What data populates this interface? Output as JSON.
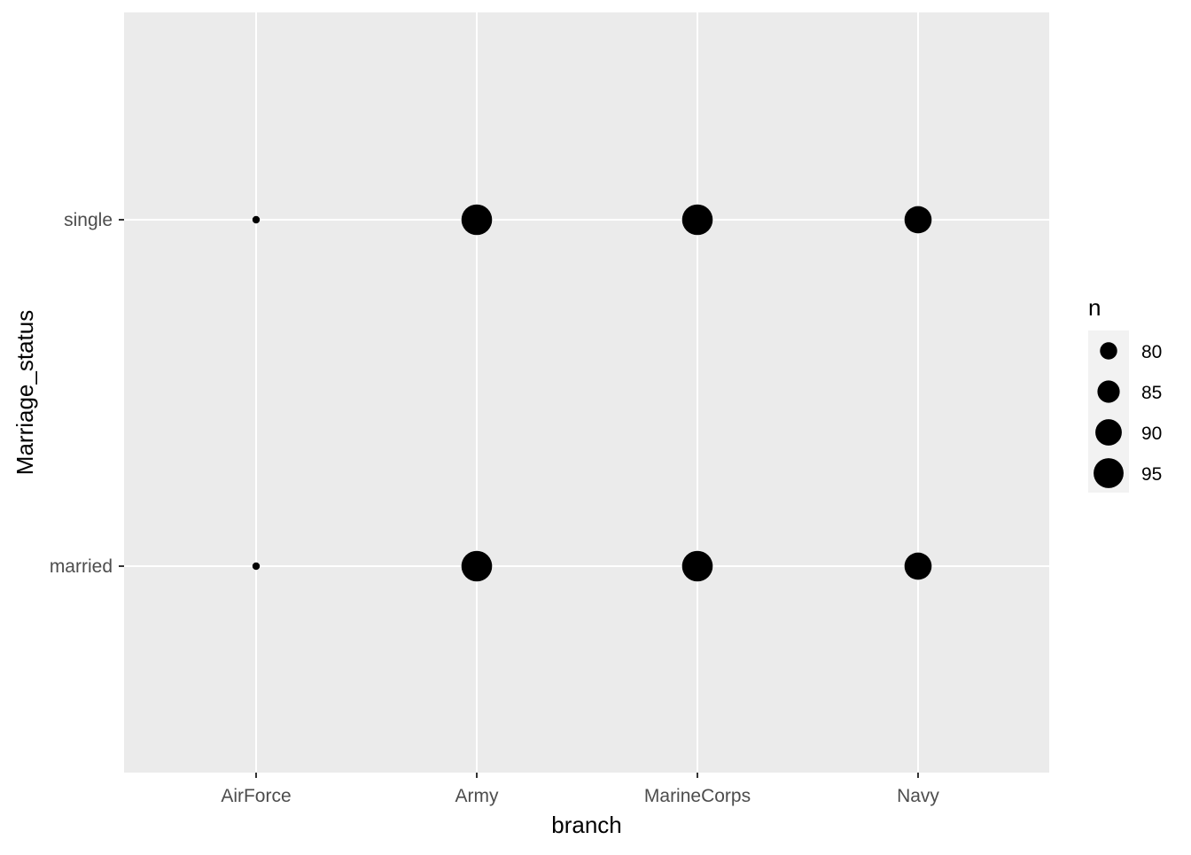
{
  "chart_data": {
    "type": "scatter",
    "title": "",
    "xlabel": "branch",
    "ylabel": "Marriage_status",
    "x_categories": [
      "AirForce",
      "Army",
      "MarineCorps",
      "Navy"
    ],
    "y_categories": [
      "married",
      "single"
    ],
    "points": [
      {
        "x": "AirForce",
        "y": "single",
        "n": 74
      },
      {
        "x": "Army",
        "y": "single",
        "n": 96
      },
      {
        "x": "MarineCorps",
        "y": "single",
        "n": 96
      },
      {
        "x": "Navy",
        "y": "single",
        "n": 91
      },
      {
        "x": "AirForce",
        "y": "married",
        "n": 74
      },
      {
        "x": "Army",
        "y": "married",
        "n": 96
      },
      {
        "x": "MarineCorps",
        "y": "married",
        "n": 96
      },
      {
        "x": "Navy",
        "y": "married",
        "n": 91
      }
    ],
    "size_legend": {
      "title": "n",
      "breaks": [
        80,
        85,
        90,
        95
      ],
      "labels": [
        "80",
        "85",
        "90",
        "95"
      ],
      "placement": "right"
    },
    "size_range": [
      74,
      96
    ],
    "grid": true,
    "colors": {
      "panel": "#ebebeb",
      "gridline": "#ffffff",
      "point": "#000000",
      "legend_key": "#f2f2f2",
      "tick": "#333333"
    }
  }
}
